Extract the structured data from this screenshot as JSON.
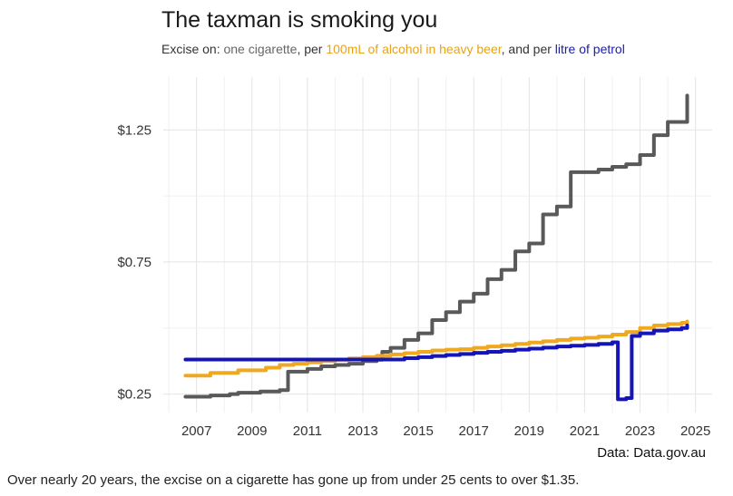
{
  "page": {
    "source": "Data: Data.gov.au",
    "caption": "Over nearly 20 years, the excise on a cigarette has gone up from under 25 cents to over $1.35."
  },
  "chart_data": {
    "type": "line",
    "title": "The taxman is smoking you",
    "subtitle_parts": {
      "prefix": "Excise on: ",
      "cigarette": "one cigarette",
      "sep1": ", per ",
      "beer": "100mL of alcohol in heavy beer",
      "sep2": ", and per ",
      "petrol": "litre of petrol"
    },
    "xlabel": "",
    "ylabel": "",
    "xlim": [
      2005.8,
      2025.6
    ],
    "ylim": [
      0.18,
      1.45
    ],
    "x_ticks": [
      2007,
      2009,
      2011,
      2013,
      2015,
      2017,
      2019,
      2021,
      2023,
      2025
    ],
    "y_ticks": [
      {
        "value": 0.25,
        "label": "$0.25"
      },
      {
        "value": 0.75,
        "label": "$0.75"
      },
      {
        "value": 1.25,
        "label": "$1.25"
      }
    ],
    "grid": true,
    "legend": "none (colored subtitle)",
    "series": [
      {
        "key": "cigarette",
        "color": "#595959",
        "step": true,
        "x": [
          2006.6,
          2007.5,
          2008.2,
          2008.5,
          2009.3,
          2010.0,
          2010.3,
          2011.0,
          2011.5,
          2012.0,
          2012.5,
          2013.0,
          2013.5,
          2013.7,
          2014.0,
          2014.5,
          2015.0,
          2015.5,
          2016.0,
          2016.5,
          2017.0,
          2017.5,
          2018.0,
          2018.5,
          2019.0,
          2019.5,
          2020.0,
          2020.5,
          2021.0,
          2021.5,
          2022.0,
          2022.5,
          2023.0,
          2023.5,
          2024.0,
          2024.5,
          2024.7
        ],
        "y": [
          0.24,
          0.245,
          0.25,
          0.255,
          0.26,
          0.265,
          0.335,
          0.345,
          0.355,
          0.36,
          0.365,
          0.375,
          0.38,
          0.41,
          0.425,
          0.455,
          0.48,
          0.53,
          0.56,
          0.6,
          0.63,
          0.685,
          0.72,
          0.79,
          0.82,
          0.93,
          0.96,
          1.09,
          1.09,
          1.1,
          1.11,
          1.12,
          1.155,
          1.23,
          1.28,
          1.28,
          1.38
        ]
      },
      {
        "key": "beer",
        "color": "#f0a820",
        "step": true,
        "x": [
          2006.6,
          2007.5,
          2008.5,
          2009.5,
          2010.0,
          2010.5,
          2011.0,
          2011.5,
          2012.0,
          2012.5,
          2013.0,
          2013.5,
          2014.0,
          2014.5,
          2015.0,
          2015.5,
          2016.0,
          2016.5,
          2017.0,
          2017.5,
          2018.0,
          2018.5,
          2019.0,
          2019.5,
          2020.0,
          2020.5,
          2021.0,
          2021.5,
          2022.0,
          2022.5,
          2023.0,
          2023.5,
          2024.0,
          2024.5,
          2024.7
        ],
        "y": [
          0.32,
          0.33,
          0.34,
          0.35,
          0.36,
          0.365,
          0.37,
          0.375,
          0.38,
          0.385,
          0.39,
          0.395,
          0.4,
          0.405,
          0.41,
          0.415,
          0.418,
          0.42,
          0.425,
          0.43,
          0.435,
          0.44,
          0.445,
          0.45,
          0.455,
          0.46,
          0.463,
          0.468,
          0.475,
          0.485,
          0.5,
          0.51,
          0.515,
          0.52,
          0.525
        ]
      },
      {
        "key": "petrol",
        "color": "#1414b8",
        "step": true,
        "x": [
          2006.6,
          2014.0,
          2014.5,
          2015.0,
          2015.5,
          2016.0,
          2016.5,
          2017.0,
          2017.5,
          2018.0,
          2018.5,
          2019.0,
          2019.5,
          2020.0,
          2020.5,
          2021.0,
          2021.5,
          2022.0,
          2022.2,
          2022.5,
          2022.7,
          2023.0,
          2023.5,
          2024.0,
          2024.5,
          2024.7
        ],
        "y": [
          0.381,
          0.381,
          0.386,
          0.39,
          0.394,
          0.398,
          0.402,
          0.406,
          0.41,
          0.414,
          0.418,
          0.422,
          0.426,
          0.43,
          0.433,
          0.436,
          0.44,
          0.446,
          0.23,
          0.235,
          0.47,
          0.48,
          0.49,
          0.495,
          0.5,
          0.51
        ]
      }
    ]
  }
}
